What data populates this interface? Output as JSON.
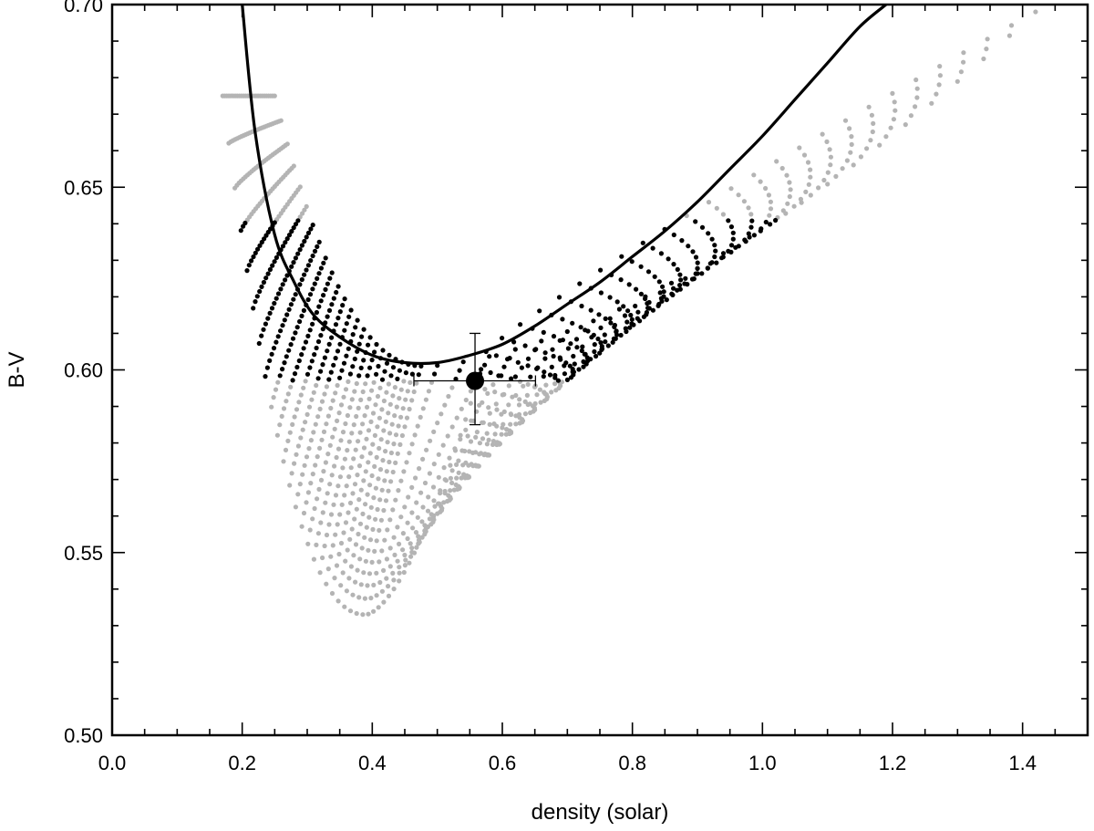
{
  "chart_data": {
    "type": "scatter",
    "title": "",
    "xlabel": "density (solar)",
    "ylabel": "B-V",
    "xlim": [
      0.0,
      1.5
    ],
    "ylim": [
      0.5,
      0.7
    ],
    "x_ticks": [
      0.0,
      0.2,
      0.4,
      0.6,
      0.8,
      1.0,
      1.2,
      1.4
    ],
    "x_tick_labels": [
      "0.0",
      "0.2",
      "0.4",
      "0.6",
      "0.8",
      "1.0",
      "1.2",
      "1.4"
    ],
    "y_ticks": [
      0.5,
      0.55,
      0.6,
      0.65,
      0.7
    ],
    "y_tick_labels": [
      "0.50",
      "0.55",
      "0.60",
      "0.65",
      "0.70"
    ],
    "x_minor_step": 0.05,
    "y_minor_step": 0.01,
    "grid": false,
    "colors": {
      "grid_models": "#b4b4b4",
      "selected_models": "#000000",
      "curve": "#000000",
      "measurement": "#000000"
    },
    "series": [
      {
        "kind": "model-grid",
        "color": "#b4b4b4",
        "description_points": "gray model-grid points forming a U-shaped band",
        "tracks": 26,
        "track_density_start": [
          0.17,
          0.25
        ],
        "track_start_bv": 0.675,
        "track_density_end": [
          0.575,
          1.42
        ],
        "track_end_bv": [
          0.605,
          0.698
        ],
        "envelope_bottom": {
          "density": 0.39,
          "bv": 0.533
        },
        "points_per_track": 48
      },
      {
        "kind": "model-grid-selected",
        "color": "#000000",
        "bv_range": [
          0.597,
          0.641
        ]
      },
      {
        "kind": "curve",
        "color": "#000000",
        "x": [
          0.2,
          0.22,
          0.25,
          0.28,
          0.31,
          0.35,
          0.4,
          0.45,
          0.5,
          0.55,
          0.6,
          0.65,
          0.7,
          0.75,
          0.8,
          0.85,
          0.9,
          0.95,
          1.0,
          1.05,
          1.1,
          1.15,
          1.19
        ],
        "y": [
          0.7,
          0.665,
          0.637,
          0.624,
          0.615,
          0.609,
          0.604,
          0.602,
          0.602,
          0.604,
          0.607,
          0.612,
          0.618,
          0.624,
          0.631,
          0.638,
          0.646,
          0.655,
          0.664,
          0.674,
          0.684,
          0.694,
          0.7
        ]
      },
      {
        "kind": "measurement",
        "color": "#000000",
        "x": 0.558,
        "y": 0.597,
        "x_err": [
          0.464,
          0.651
        ],
        "y_err": [
          0.585,
          0.61
        ]
      }
    ]
  }
}
